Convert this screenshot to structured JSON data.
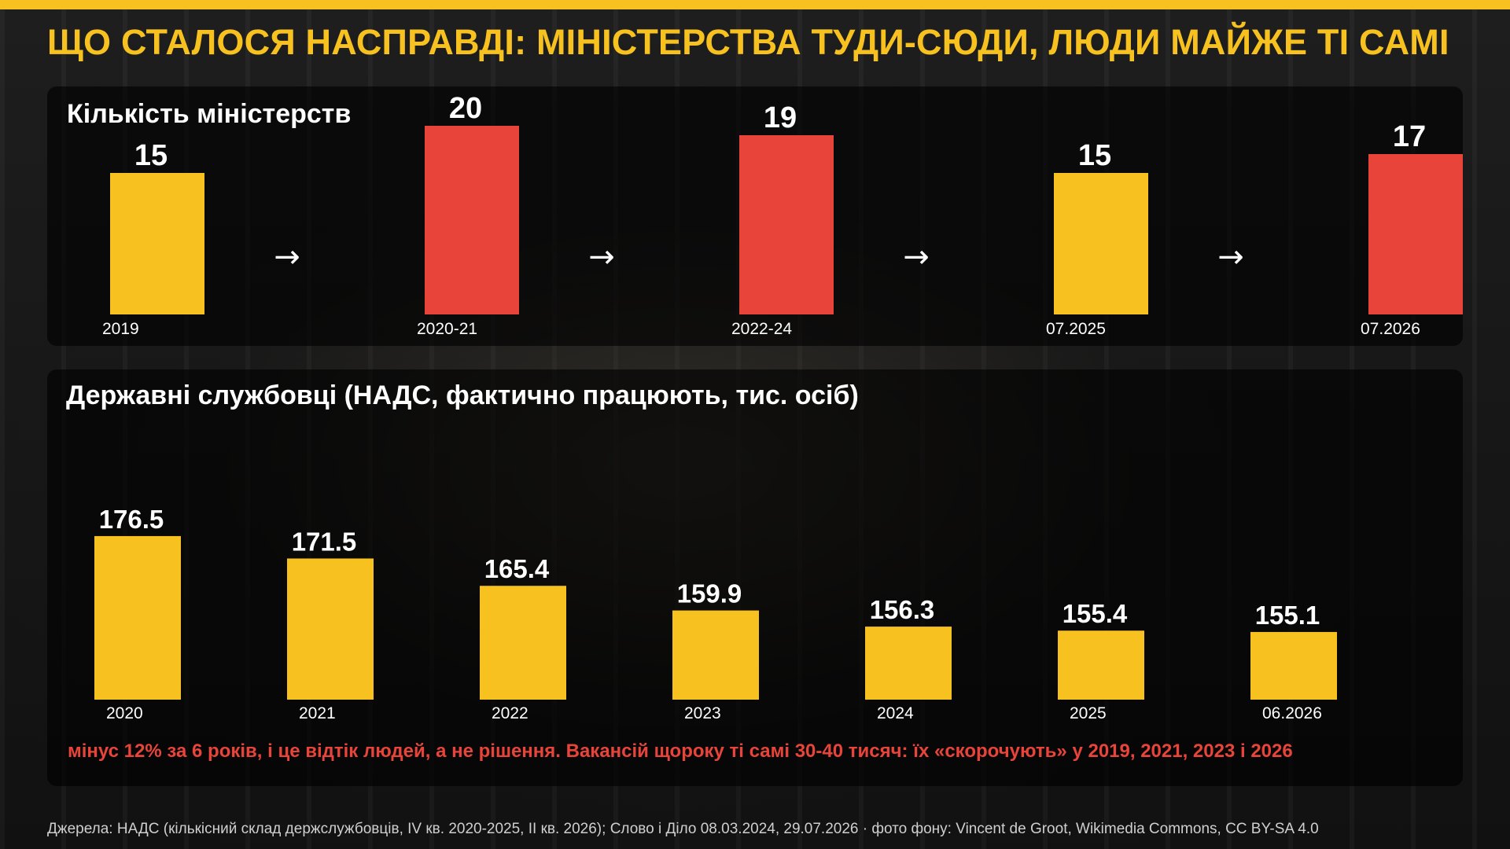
{
  "headline": "ЩО СТАЛОСЯ НАСПРАВДІ: МІНІСТЕРСТВА ТУДИ-СЮДИ, ЛЮДИ МАЙЖЕ ТІ САМІ",
  "colors": {
    "accent_yellow": "#f7c21f",
    "accent_red": "#e8443a"
  },
  "arrow_glyph": "→",
  "chart_data": [
    {
      "type": "bar",
      "title": "Кількість міністерств",
      "categories": [
        "2019",
        "2020-21",
        "2022-24",
        "07.2025",
        "07.2026"
      ],
      "values": [
        15,
        20,
        19,
        15,
        17
      ],
      "value_labels": [
        "15",
        "20",
        "19",
        "15",
        "17"
      ],
      "bar_colors": [
        "#f7c21f",
        "#e8443a",
        "#e8443a",
        "#f7c21f",
        "#e8443a"
      ],
      "arrows_between_bars": true
    },
    {
      "type": "bar",
      "title": "Державні службовці (НАДС, фактично працюють, тис. осіб)",
      "categories": [
        "2020",
        "2021",
        "2022",
        "2023",
        "2024",
        "2025",
        "06.2026"
      ],
      "values": [
        176.5,
        171.5,
        165.4,
        159.9,
        156.3,
        155.4,
        155.1
      ],
      "value_labels": [
        "176.5",
        "171.5",
        "165.4",
        "159.9",
        "156.3",
        "155.4",
        "155.1"
      ],
      "bar_colors": [
        "#f7c21f",
        "#f7c21f",
        "#f7c21f",
        "#f7c21f",
        "#f7c21f",
        "#f7c21f",
        "#f7c21f"
      ]
    }
  ],
  "note": "мінус 12% за 6 років, і це відтік людей, а не рішення. Вакансій щороку ті самі 30-40 тисяч: їх «скорочують» у 2019, 2021, 2023 і 2026",
  "source": "Джерела: НАДС (кількісний склад держслужбовців, IV кв. 2020-2025, II кв. 2026); Слово і Діло 08.03.2024, 29.07.2026 · фото фону: Vincent de Groot, Wikimedia Commons, CC BY-SA 4.0"
}
